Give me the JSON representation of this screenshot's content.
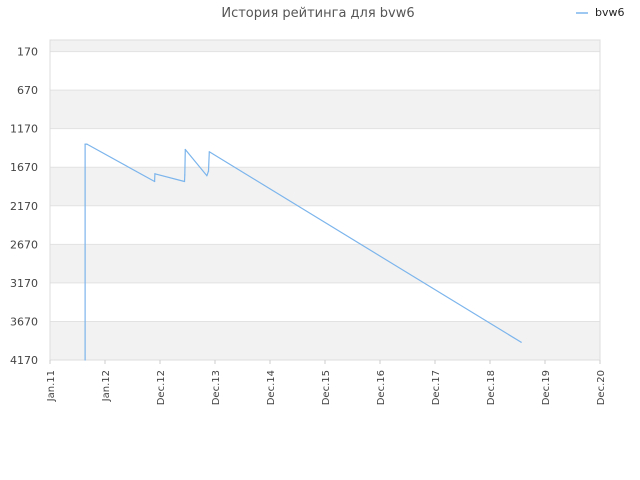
{
  "chart_data": {
    "type": "line",
    "title": "История рейтинга для bvw6",
    "xlabel": "",
    "ylabel": "",
    "y_inverted": true,
    "ylim": [
      4170,
      20
    ],
    "y_ticks": [
      170,
      670,
      1170,
      1670,
      2170,
      2670,
      3170,
      3670,
      4170
    ],
    "y_tick_labels": [
      "170",
      "670",
      "1170",
      "1670",
      "2170",
      "2670",
      "3170",
      "3670",
      "4170"
    ],
    "x_tick_labels": [
      "Jan.11",
      "Jan.12",
      "Dec.12",
      "Dec.13",
      "Dec.14",
      "Dec.15",
      "Dec.16",
      "Dec.17",
      "Dec.18",
      "Dec.19",
      "Dec.20"
    ],
    "grid": true,
    "alternating_bands": true,
    "legend_position": "top-right",
    "series": [
      {
        "name": "bvw6",
        "color": "#7cb5ec",
        "points": [
          {
            "t": "2011-08-20",
            "y": 4170
          },
          {
            "t": "2011-08-20",
            "y": 1370
          },
          {
            "t": "2011-09-01",
            "y": 1370
          },
          {
            "t": "2012-11-20",
            "y": 1855
          },
          {
            "t": "2012-11-22",
            "y": 1755
          },
          {
            "t": "2013-06-05",
            "y": 1855
          },
          {
            "t": "2013-06-07",
            "y": 1770
          },
          {
            "t": "2013-06-10",
            "y": 1440
          },
          {
            "t": "2013-10-30",
            "y": 1780
          },
          {
            "t": "2013-11-10",
            "y": 1720
          },
          {
            "t": "2013-11-15",
            "y": 1470
          },
          {
            "t": "2019-07-01",
            "y": 3940
          }
        ]
      }
    ]
  }
}
